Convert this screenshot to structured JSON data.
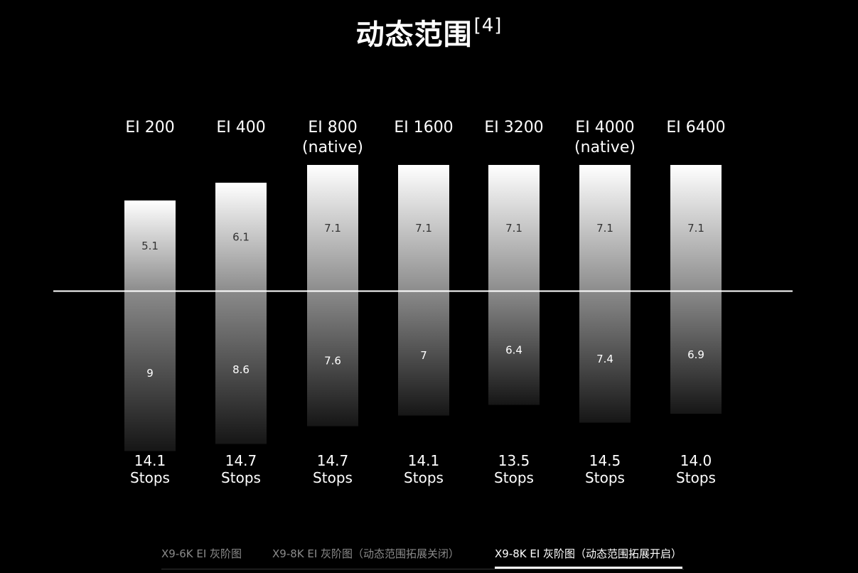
{
  "title": "动态范围",
  "title_sup": "[4]",
  "colors": {
    "background": "#000000",
    "text": "#ffffff",
    "baseline": "#ffffff",
    "bar_top": "#ffffff",
    "bar_bottom": "#111111",
    "tab_inactive": "#8a8a8a",
    "tab_active": "#ffffff"
  },
  "chart_data": {
    "type": "bar",
    "layout": "diverging stacked",
    "categories": [
      [
        "EI 200"
      ],
      [
        "EI 400"
      ],
      [
        "EI 800",
        "(native)"
      ],
      [
        "EI 1600"
      ],
      [
        "EI 3200"
      ],
      [
        "EI 4000",
        "(native)"
      ],
      [
        "EI 6400"
      ]
    ],
    "series": [
      {
        "values": [
          5.1,
          6.1,
          7.1,
          7.1,
          7.1,
          7.1,
          7.1
        ]
      },
      {
        "values": [
          9,
          8.6,
          7.6,
          7,
          6.4,
          7.4,
          6.9
        ]
      }
    ],
    "totals": [
      [
        "14.1",
        "Stops"
      ],
      [
        "14.7",
        "Stops"
      ],
      [
        "14.7",
        "Stops"
      ],
      [
        "14.1",
        "Stops"
      ],
      [
        "13.5",
        "Stops"
      ],
      [
        "14.5",
        "Stops"
      ],
      [
        "14.0",
        "Stops"
      ]
    ],
    "title": "",
    "xlabel": "",
    "ylabel": "",
    "grid": false,
    "legend": "none"
  },
  "tabs": [
    {
      "label": "X9-6K EI 灰阶图",
      "active": false
    },
    {
      "label": "X9-8K EI 灰阶图（动态范围拓展关闭）",
      "active": false
    },
    {
      "label": "X9-8K EI 灰阶图（动态范围拓展开启）",
      "active": true
    }
  ]
}
